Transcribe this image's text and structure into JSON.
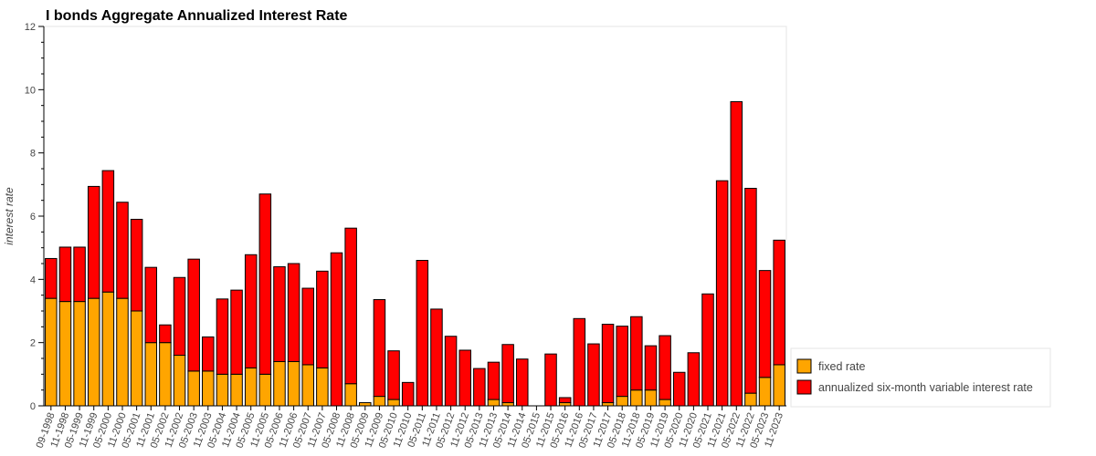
{
  "colors": {
    "fixed": "#FFA500",
    "variable": "#FF0000",
    "bar_outline": "#000000"
  },
  "chart_data": {
    "type": "bar",
    "stacked": true,
    "title": "I bonds Aggregate Annualized Interest Rate",
    "xlabel": "",
    "ylabel": "interest rate",
    "ylim": [
      0,
      12
    ],
    "yticks": [
      0,
      2,
      4,
      6,
      8,
      10,
      12
    ],
    "grid": false,
    "legend_position": "bottom-right, outside plot",
    "categories": [
      "09-1998",
      "11-1998",
      "05-1999",
      "11-1999",
      "05-2000",
      "11-2000",
      "05-2001",
      "11-2001",
      "05-2002",
      "11-2002",
      "05-2003",
      "11-2003",
      "05-2004",
      "11-2004",
      "05-2005",
      "11-2005",
      "05-2006",
      "11-2006",
      "05-2007",
      "11-2007",
      "05-2008",
      "11-2008",
      "05-2009",
      "11-2009",
      "05-2010",
      "11-2010",
      "05-2011",
      "11-2011",
      "05-2012",
      "11-2012",
      "05-2013",
      "11-2013",
      "05-2014",
      "11-2014",
      "05-2015",
      "11-2015",
      "05-2016",
      "11-2016",
      "05-2017",
      "11-2017",
      "05-2018",
      "11-2018",
      "05-2019",
      "11-2019",
      "05-2020",
      "11-2020",
      "05-2021",
      "11-2021",
      "05-2022",
      "11-2022",
      "05-2023",
      "11-2023"
    ],
    "series": [
      {
        "name": "fixed rate",
        "color": "#FFA500",
        "values": [
          3.4,
          3.3,
          3.3,
          3.4,
          3.6,
          3.4,
          3.0,
          2.0,
          2.0,
          1.6,
          1.1,
          1.1,
          1.0,
          1.0,
          1.2,
          1.0,
          1.4,
          1.4,
          1.3,
          1.2,
          0,
          0.7,
          0.1,
          0.3,
          0.2,
          0,
          0,
          0,
          0,
          0,
          0,
          0.2,
          0.1,
          0,
          0,
          0,
          0.1,
          0,
          0,
          0.1,
          0.3,
          0.5,
          0.5,
          0.2,
          0,
          0,
          0,
          0,
          0,
          0.4,
          0.9,
          1.3
        ]
      },
      {
        "name": "annualized six-month variable interest rate",
        "color": "#FF0000",
        "values": [
          1.26,
          1.72,
          1.72,
          3.54,
          3.84,
          3.04,
          2.9,
          2.38,
          0.56,
          2.46,
          3.54,
          1.08,
          2.38,
          2.66,
          3.58,
          5.7,
          3.0,
          3.1,
          2.42,
          3.06,
          4.84,
          4.92,
          0,
          3.06,
          1.54,
          0.74,
          4.6,
          3.06,
          2.2,
          1.76,
          1.18,
          1.18,
          1.84,
          1.48,
          0,
          1.64,
          0.16,
          2.76,
          1.96,
          2.48,
          2.22,
          2.32,
          1.4,
          2.02,
          1.06,
          1.68,
          3.54,
          7.12,
          9.62,
          6.48,
          3.38,
          3.94
        ]
      }
    ]
  }
}
